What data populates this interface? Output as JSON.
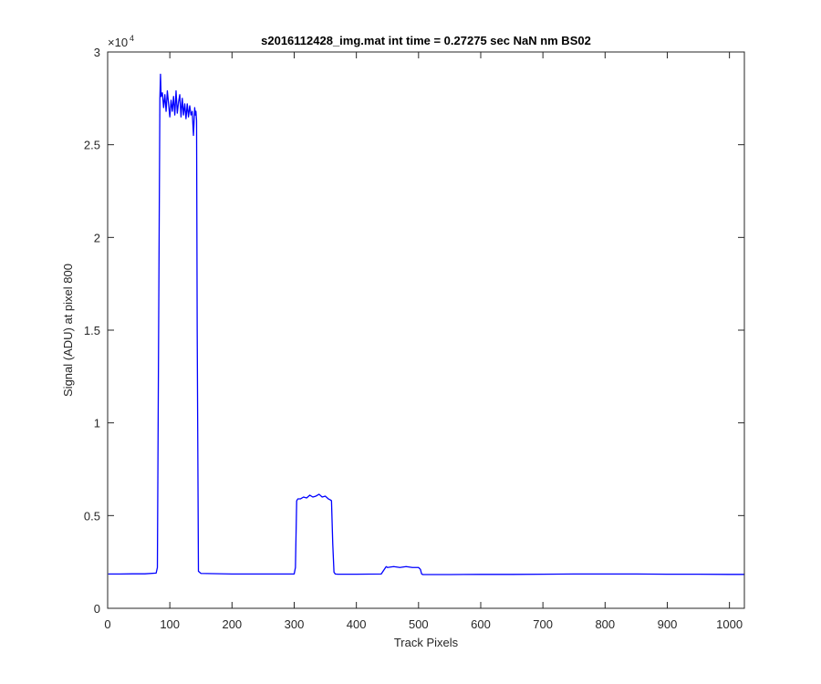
{
  "chart_data": {
    "type": "line",
    "title": "s2016112428_img.mat int time = 0.27275 sec  NaN nm BS02",
    "xlabel": "Track Pixels",
    "ylabel": "Signal (ADU) at pixel 800",
    "xlim": [
      0,
      1024
    ],
    "ylim": [
      0,
      30000
    ],
    "y_exponent_label": "×10",
    "y_exponent_power": "4",
    "x_ticks": [
      0,
      100,
      200,
      300,
      400,
      500,
      600,
      700,
      800,
      900,
      1000
    ],
    "x_tick_labels": [
      "0",
      "100",
      "200",
      "300",
      "400",
      "500",
      "600",
      "700",
      "800",
      "900",
      "1000"
    ],
    "y_ticks": [
      0,
      5000,
      10000,
      15000,
      20000,
      25000,
      30000
    ],
    "y_tick_labels": [
      "0",
      "0.5",
      "1",
      "1.5",
      "2",
      "2.5",
      "3"
    ],
    "grid": false,
    "series": [
      {
        "color": "#0000ff",
        "x": [
          1,
          20,
          40,
          60,
          78,
          80,
          82,
          84,
          85,
          86,
          88,
          90,
          92,
          94,
          96,
          98,
          100,
          102,
          104,
          106,
          108,
          110,
          112,
          114,
          116,
          118,
          120,
          122,
          124,
          126,
          128,
          130,
          132,
          134,
          136,
          138,
          140,
          141,
          142,
          143,
          144,
          146,
          150,
          200,
          250,
          300,
          302,
          304,
          306,
          310,
          315,
          320,
          325,
          330,
          335,
          340,
          345,
          350,
          355,
          358,
          360,
          362,
          364,
          366,
          370,
          400,
          440,
          446,
          448,
          450,
          460,
          470,
          480,
          490,
          500,
          503,
          505,
          507,
          510,
          550,
          600,
          650,
          700,
          750,
          800,
          850,
          900,
          950,
          1000,
          1024
        ],
        "y": [
          1850,
          1850,
          1860,
          1860,
          1900,
          2200,
          15000,
          27500,
          28800,
          27600,
          27800,
          27000,
          27700,
          26800,
          27900,
          27200,
          26500,
          27400,
          26800,
          27600,
          26600,
          27900,
          26700,
          27300,
          27700,
          26500,
          27500,
          26600,
          27200,
          26400,
          27200,
          26500,
          27100,
          26600,
          26800,
          25500,
          27000,
          26600,
          26800,
          26300,
          15000,
          2000,
          1880,
          1850,
          1850,
          1850,
          2200,
          5800,
          5900,
          5900,
          6000,
          5950,
          6100,
          6000,
          6050,
          6150,
          6000,
          6050,
          5900,
          5850,
          5800,
          3500,
          1950,
          1850,
          1840,
          1840,
          1850,
          2150,
          2250,
          2200,
          2250,
          2200,
          2250,
          2200,
          2200,
          2100,
          1850,
          1820,
          1820,
          1820,
          1830,
          1830,
          1840,
          1850,
          1850,
          1850,
          1840,
          1840,
          1830,
          1830
        ]
      }
    ]
  }
}
